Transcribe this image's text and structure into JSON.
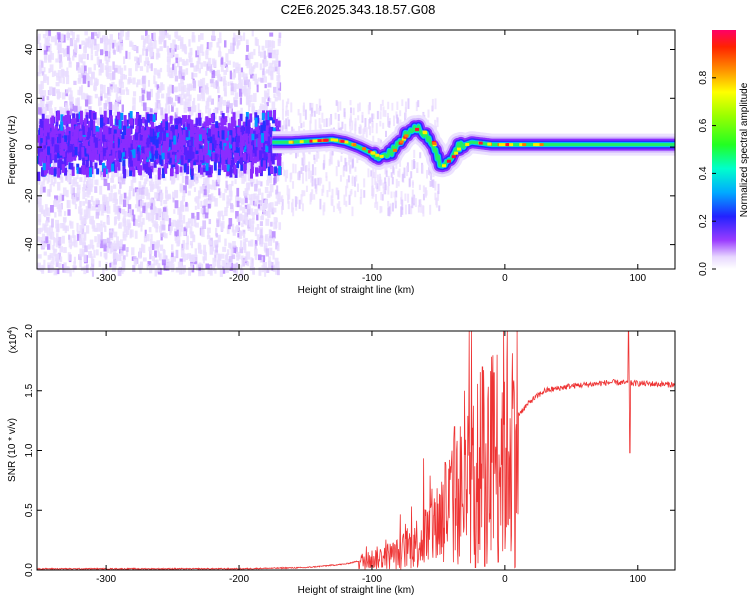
{
  "title": "C2E6.2025.343.18.57.G08",
  "chart_data": [
    {
      "type": "heatmap",
      "name": "spectrogram",
      "xlabel": "Height of straight line (km)",
      "ylabel": "Frequency (Hz)",
      "xlim": [
        -352,
        128
      ],
      "ylim": [
        -50,
        48
      ],
      "xticks": [
        -300,
        -200,
        -100,
        0,
        100
      ],
      "yticks": [
        -40,
        -20,
        0,
        20,
        40
      ],
      "colorbar": {
        "label": "Normalized spectral amplitude",
        "range": [
          0,
          1
        ],
        "ticks": [
          "0.0",
          "0.2",
          "0.4",
          "0.6",
          "0.8"
        ],
        "tick_values": [
          0,
          0.2,
          0.4,
          0.6,
          0.8
        ]
      },
      "ridge": [
        {
          "x": -350,
          "f": 2
        },
        {
          "x": -300,
          "f": 2
        },
        {
          "x": -250,
          "f": 1
        },
        {
          "x": -175,
          "f": 2
        },
        {
          "x": -160,
          "f": 2
        },
        {
          "x": -130,
          "f": 3
        },
        {
          "x": -120,
          "f": 2
        },
        {
          "x": -110,
          "f": 0
        },
        {
          "x": -95,
          "f": -4
        },
        {
          "x": -85,
          "f": -2
        },
        {
          "x": -75,
          "f": 5
        },
        {
          "x": -65,
          "f": 8
        },
        {
          "x": -55,
          "f": 2
        },
        {
          "x": -48,
          "f": -8
        },
        {
          "x": -40,
          "f": -4
        },
        {
          "x": -35,
          "f": 0
        },
        {
          "x": -25,
          "f": 2
        },
        {
          "x": -10,
          "f": 1
        },
        {
          "x": 10,
          "f": 1
        },
        {
          "x": 128,
          "f": 1
        }
      ]
    },
    {
      "type": "line",
      "name": "snr",
      "xlabel": "Height of straight line (km)",
      "ylabel": "SNR (10 * v/v)",
      "multiplier": "(x10",
      "multiplier_exp": "4",
      "xlim": [
        -352,
        128
      ],
      "ylim": [
        0,
        2.0
      ],
      "xticks": [
        -300,
        -200,
        -100,
        0,
        100
      ],
      "yticks": [
        0.0,
        0.5,
        1.0,
        1.5,
        2.0
      ],
      "ytick_labels": [
        "0.0",
        "0.5",
        "1.0",
        "1.5",
        "2.0"
      ],
      "series_color": "#ee3333",
      "trend": [
        {
          "x": -352,
          "y": 0.01
        },
        {
          "x": -200,
          "y": 0.01
        },
        {
          "x": -150,
          "y": 0.02
        },
        {
          "x": -120,
          "y": 0.05
        },
        {
          "x": -100,
          "y": 0.1
        },
        {
          "x": -80,
          "y": 0.15
        },
        {
          "x": -60,
          "y": 0.3
        },
        {
          "x": -50,
          "y": 0.45
        },
        {
          "x": -40,
          "y": 0.6
        },
        {
          "x": -30,
          "y": 0.75
        },
        {
          "x": -20,
          "y": 0.9
        },
        {
          "x": -10,
          "y": 1.05
        },
        {
          "x": 0,
          "y": 1.15
        },
        {
          "x": 10,
          "y": 1.3
        },
        {
          "x": 20,
          "y": 1.42
        },
        {
          "x": 30,
          "y": 1.5
        },
        {
          "x": 50,
          "y": 1.54
        },
        {
          "x": 80,
          "y": 1.57
        },
        {
          "x": 128,
          "y": 1.55
        }
      ],
      "peaks": [
        {
          "x": -17,
          "y": 1.7
        },
        {
          "x": -38,
          "y": 1.2
        },
        {
          "x": -45,
          "y": 0.9
        },
        {
          "x": -8,
          "y": 1.65
        },
        {
          "x": 93,
          "y": 2.0
        }
      ],
      "dips": [
        {
          "x": 94,
          "y": 0.98
        },
        {
          "x": -15,
          "y": 0.03
        },
        {
          "x": -22,
          "y": 0.02
        }
      ]
    }
  ]
}
